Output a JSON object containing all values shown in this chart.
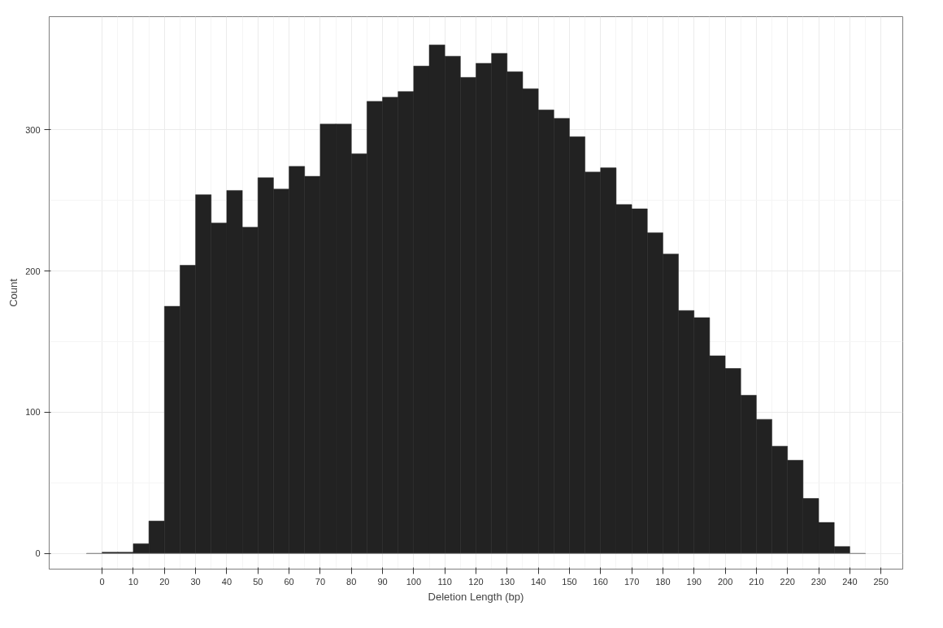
{
  "chart_data": {
    "type": "histogram",
    "xlabel": "Deletion Length (bp)",
    "ylabel": "Count",
    "bins": [
      -5,
      0,
      5,
      10,
      15,
      20,
      25,
      30,
      35,
      40,
      45,
      50,
      55,
      60,
      65,
      70,
      75,
      80,
      85,
      90,
      95,
      100,
      105,
      110,
      115,
      120,
      125,
      130,
      135,
      140,
      145,
      150,
      155,
      160,
      165,
      170,
      175,
      180,
      185,
      190,
      195,
      200,
      205,
      210,
      215,
      220,
      225,
      230,
      235,
      240,
      245
    ],
    "values": [
      0,
      1,
      1,
      7,
      23,
      175,
      204,
      254,
      234,
      257,
      231,
      266,
      258,
      274,
      267,
      304,
      304,
      283,
      320,
      323,
      327,
      345,
      360,
      352,
      337,
      347,
      354,
      341,
      329,
      314,
      308,
      295,
      270,
      273,
      247,
      244,
      227,
      212,
      172,
      167,
      140,
      131,
      112,
      95,
      76,
      66,
      39,
      22,
      5,
      0
    ],
    "color": "#222222",
    "xlim": [
      -17,
      257
    ],
    "ylim": [
      -11,
      380
    ],
    "xticks": [
      0,
      10,
      20,
      30,
      40,
      50,
      60,
      70,
      80,
      90,
      100,
      110,
      120,
      130,
      140,
      150,
      160,
      170,
      180,
      190,
      200,
      210,
      220,
      230,
      240,
      250
    ],
    "yticks": [
      0,
      100,
      200,
      300
    ],
    "grid": true
  }
}
